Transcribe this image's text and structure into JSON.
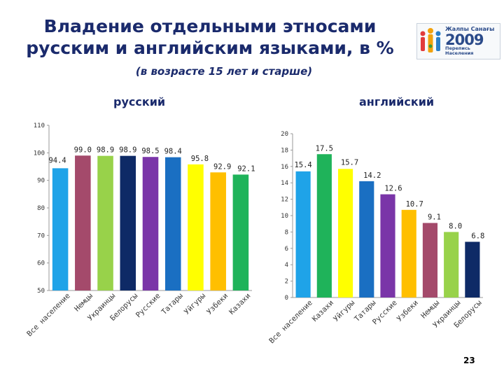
{
  "slide": {
    "title_line1": "Владение отдельными этносами",
    "title_line2": "русским и английским языками, в %",
    "subtitle": "(в возрасте 15 лет и старше)",
    "page_number": "23"
  },
  "logo": {
    "line1": "Жалпы Санағы",
    "year": "2009",
    "line2a": "Перепись",
    "line2b": "Населения",
    "colors": [
      "#e23b3b",
      "#f2a20c",
      "#2b7fc7",
      "#3a9b3a"
    ]
  },
  "chart_data": [
    {
      "type": "bar",
      "title": "русский",
      "categories": [
        "Все население",
        "Немцы",
        "Украинцы",
        "Белорусы",
        "Русские",
        "Татары",
        "Уйгуры",
        "Узбеки",
        "Казахи"
      ],
      "values": [
        94.4,
        99.0,
        98.9,
        98.9,
        98.5,
        98.4,
        95.8,
        92.9,
        92.1
      ],
      "value_labels": [
        "94.4",
        "99.0",
        "98.9",
        "98.9",
        "98.5",
        "98.4",
        "95.8",
        "92.9",
        "92.1"
      ],
      "colors": [
        "#1fa3e8",
        "#a44a6b",
        "#98d24a",
        "#0e2a66",
        "#7a35a8",
        "#1a6fc2",
        "#ffff00",
        "#ffbf00",
        "#1fb35a"
      ],
      "ylim": [
        50,
        110
      ],
      "yticks": [
        50,
        60,
        70,
        80,
        90,
        100,
        110
      ],
      "grid": false
    },
    {
      "type": "bar",
      "title": "английский",
      "categories": [
        "Все население",
        "Казахи",
        "Уйгуры",
        "Татары",
        "Русские",
        "Узбеки",
        "Немцы",
        "Украинцы",
        "Белорусы"
      ],
      "values": [
        15.4,
        17.5,
        15.7,
        14.2,
        12.6,
        10.7,
        9.1,
        8.0,
        6.8
      ],
      "value_labels": [
        "15.4",
        "17.5",
        "15.7",
        "14.2",
        "12.6",
        "10.7",
        "9.1",
        "8.0",
        "6.8"
      ],
      "colors": [
        "#1fa3e8",
        "#1fb35a",
        "#ffff00",
        "#1a6fc2",
        "#7a35a8",
        "#ffbf00",
        "#a44a6b",
        "#98d24a",
        "#0e2a66"
      ],
      "ylim": [
        0,
        20
      ],
      "yticks": [
        0,
        2,
        4,
        6,
        8,
        10,
        12,
        14,
        16,
        18,
        20
      ],
      "grid": false
    }
  ]
}
